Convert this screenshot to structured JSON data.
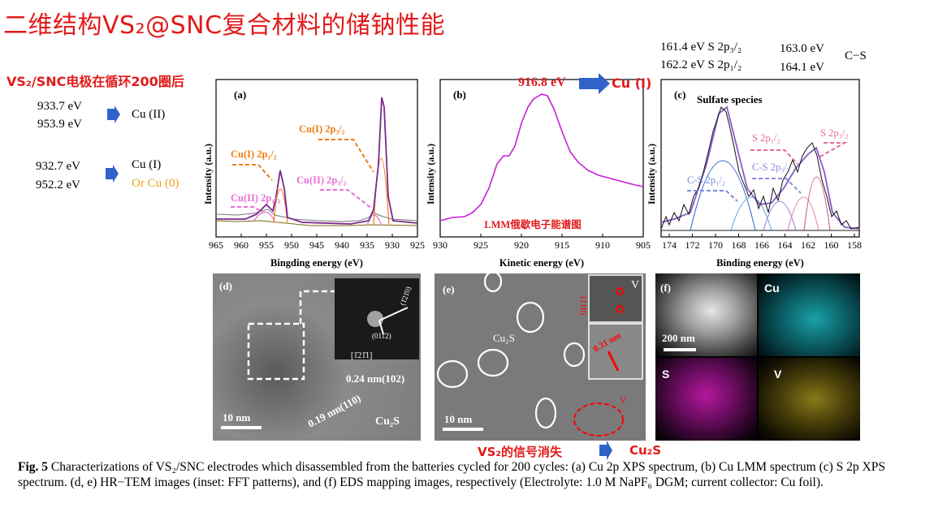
{
  "title": "二维结构VS₂@SNC复合材料的储钠性能",
  "subtitle": "VS₂/SNC电极在循环200圈后",
  "left_notes": {
    "ev1": "933.7 eV",
    "ev2": "953.9 eV",
    "state1": "Cu (II)",
    "ev3": "932.7 eV",
    "ev4": "952.2 eV",
    "state2": "Cu (I)",
    "state3": "Or Cu (0)"
  },
  "panel_a": {
    "label": "(a)",
    "xlabel": "Bingding energy (eV)",
    "ylabel": "Intensity (a.u.)",
    "ticks": [
      "965",
      "960",
      "955",
      "950",
      "945",
      "940",
      "935",
      "930",
      "925"
    ],
    "ann1": "Cu(I) 2p₃/₂",
    "ann2": "Cu(I) 2p₁/₂",
    "ann3": "Cu(II) 2p₃/₂",
    "ann4": "Cu(II) 2p₁/₂"
  },
  "panel_b": {
    "label": "(b)",
    "xlabel": "Kinetic energy (eV)",
    "ylabel": "Intensity (a.u.)",
    "ticks": [
      "930",
      "925",
      "920",
      "915",
      "910",
      "905"
    ],
    "peak": "916.8 eV",
    "peak_state": "Cu (I)",
    "note": "LMM俄歇电子能谱图"
  },
  "panel_c": {
    "label": "(c)",
    "xlabel": "Binding energy (eV)",
    "ylabel": "Intensity (a.u.)",
    "ticks": [
      "174",
      "172",
      "170",
      "168",
      "166",
      "164",
      "162",
      "160",
      "158"
    ],
    "sulfate": "Sulfate species",
    "ann1": "S 2p₁/₂",
    "ann2": "S 2p₃/₂",
    "ann3": "C-S 2p₃/₂",
    "ann4": "C-S 2p₁/₂",
    "top1": "161.4 eV  S 2p₃/₂",
    "top2": "162.2 eV  S 2p₁/₂",
    "top3": "163.0 eV",
    "top4": "164.1 eV",
    "top5": "C−S"
  },
  "panel_d": {
    "label": "(d)",
    "d1": "0.24 nm(102)",
    "d2": "0.19 nm(110)",
    "phase": "Cu₂S",
    "scale": "10 nm",
    "inset_axis": "[1̄21̄1]",
    "inset_spot": "(011̄2)",
    "inset_spot2": "(1̄21̄0)"
  },
  "panel_e": {
    "label": "(e)",
    "phase": "Cu₂S",
    "scale": "10 nm",
    "inset_label": "V",
    "inset_plane": "(110)",
    "inset_d": "0.31 nm",
    "v_label": "V"
  },
  "panel_f": {
    "label": "(f)",
    "scale": "200 nm",
    "cu": "Cu",
    "s": "S",
    "v": "V"
  },
  "bottom_note": {
    "left": "VS₂的信号消失",
    "right": "Cu₂S"
  },
  "caption": {
    "fig": "Fig. 5",
    "text": " Characterizations of VS₂/SNC electrodes which disassembled from the batteries cycled for 200 cycles: (a) Cu 2p XPS spectrum, (b) Cu LMM spectrum (c) S 2p XPS spectrum. (d, e) HR−TEM images (inset: FFT patterns), and (f) EDS mapping images, respectively (Electrolyte: 1.0 M NaPF₆ DGM; current collector: Cu foil)."
  },
  "colors": {
    "accent_red": "#e21a1a",
    "orange": "#f07d12",
    "pink": "#e86fd6",
    "purple": "#7a2a8c",
    "magenta": "#c81ed6",
    "blue_arrow": "#2f63c9"
  }
}
